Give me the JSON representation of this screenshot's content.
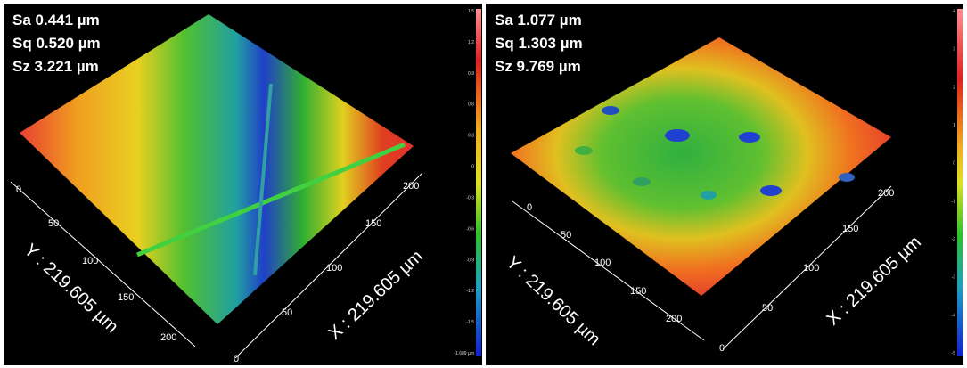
{
  "panels": [
    {
      "stats": {
        "sa": "Sa 0.441 µm",
        "sq": "Sq 0.520 µm",
        "sz": "Sz 3.221 µm"
      },
      "x_axis_label": "X : 219.605 µm",
      "y_axis_label": "Y : 219.605 µm",
      "x_ticks": [
        "0",
        "50",
        "100",
        "150",
        "200"
      ],
      "y_ticks": [
        "0",
        "50",
        "100",
        "150",
        "200"
      ],
      "colorbar_ticks": [
        "1.5",
        "1.2",
        "0.9",
        "0.6",
        "0.3",
        "0",
        "-0.3",
        "-0.6",
        "-0.9",
        "-1.2",
        "-1.5",
        "-1.609 µm"
      ]
    },
    {
      "stats": {
        "sa": "Sa 1.077 µm",
        "sq": "Sq 1.303 µm",
        "sz": "Sz 9.769 µm"
      },
      "x_axis_label": "X : 219.605 µm",
      "y_axis_label": "Y : 219.605 µm",
      "x_ticks": [
        "0",
        "50",
        "100",
        "150",
        "200"
      ],
      "y_ticks": [
        "0",
        "50",
        "100",
        "150",
        "200"
      ],
      "colorbar_ticks": [
        "4",
        "3",
        "2",
        "1",
        "0",
        "-1",
        "-2",
        "-3",
        "-4",
        "-5"
      ]
    }
  ],
  "colors": {
    "high": "#e03030",
    "mid_high": "#f0c020",
    "mid": "#30c030",
    "low": "#2040d0"
  }
}
